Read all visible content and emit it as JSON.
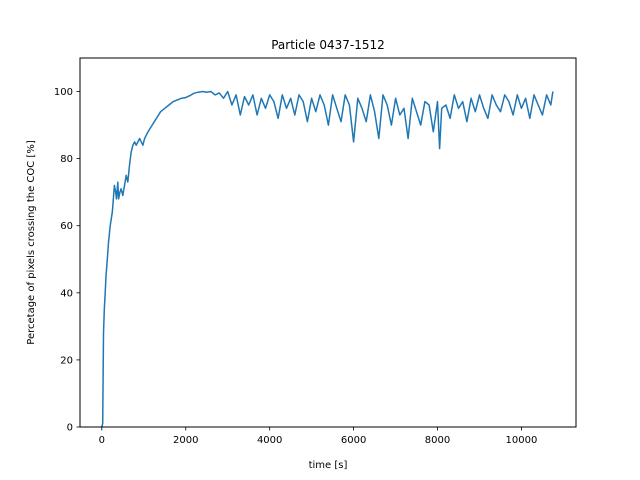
{
  "chart_data": {
    "type": "line",
    "title": "Particle 0437-1512",
    "xlabel": "time [s]",
    "ylabel": "Percetage of pixels crossing the COC [%]",
    "xlim": [
      -520,
      11300
    ],
    "ylim": [
      0,
      110
    ],
    "xticks": [
      0,
      2000,
      4000,
      6000,
      8000,
      10000
    ],
    "yticks": [
      0,
      20,
      40,
      60,
      80,
      100
    ],
    "grid": false,
    "line_color": "#1f77b4",
    "series": [
      {
        "x": [
          0,
          20,
          40,
          60,
          80,
          100,
          130,
          160,
          200,
          250,
          300,
          330,
          350,
          380,
          400,
          430,
          460,
          500,
          540,
          580,
          620,
          660,
          700,
          740,
          780,
          820,
          860,
          900,
          940,
          980,
          1020,
          1060,
          1100,
          1150,
          1200,
          1250,
          1300,
          1400,
          1500,
          1600,
          1700,
          1800,
          1900,
          2000,
          2100,
          2200,
          2300,
          2400,
          2500,
          2600,
          2700,
          2800,
          2900,
          3000,
          3100,
          3200,
          3300,
          3400,
          3500,
          3600,
          3700,
          3800,
          3900,
          4000,
          4100,
          4200,
          4300,
          4400,
          4500,
          4600,
          4700,
          4800,
          4900,
          5000,
          5100,
          5200,
          5300,
          5400,
          5500,
          5600,
          5700,
          5800,
          5900,
          6000,
          6100,
          6200,
          6300,
          6400,
          6500,
          6600,
          6700,
          6800,
          6900,
          7000,
          7100,
          7200,
          7300,
          7400,
          7500,
          7600,
          7700,
          7800,
          7900,
          8000,
          8050,
          8100,
          8200,
          8300,
          8400,
          8500,
          8600,
          8700,
          8800,
          8900,
          9000,
          9100,
          9200,
          9300,
          9400,
          9500,
          9600,
          9700,
          9800,
          9900,
          10000,
          10100,
          10200,
          10300,
          10400,
          10500,
          10600,
          10700,
          10750
        ],
        "y": [
          0,
          1,
          28,
          35,
          40,
          45,
          50,
          55,
          60,
          64,
          72,
          70,
          68,
          73,
          68,
          70,
          71,
          69,
          72,
          75,
          73,
          78,
          82,
          84,
          85,
          84,
          85,
          86,
          85,
          84,
          86,
          87,
          88,
          89,
          90,
          91,
          92,
          94,
          95,
          96,
          97,
          97.5,
          98,
          98.2,
          98.8,
          99.5,
          99.8,
          100,
          99.8,
          100,
          99,
          99.6,
          98,
          100,
          96,
          99,
          93,
          98.5,
          96,
          99,
          93,
          98,
          95,
          99,
          97,
          92,
          99,
          95,
          98,
          93,
          99,
          97,
          91,
          98,
          94,
          99,
          96,
          90,
          99,
          95,
          91,
          99,
          96,
          85,
          98,
          95,
          91,
          99,
          94,
          86,
          99,
          96,
          90,
          98,
          93,
          95,
          86,
          98,
          94,
          90,
          97,
          96,
          88,
          97,
          83,
          95,
          96,
          92,
          99,
          95,
          97,
          91,
          98,
          94,
          99,
          95,
          92,
          99,
          96,
          94,
          99,
          97,
          93,
          99,
          95,
          98,
          92,
          99,
          96,
          93,
          99,
          96,
          100
        ]
      }
    ]
  }
}
